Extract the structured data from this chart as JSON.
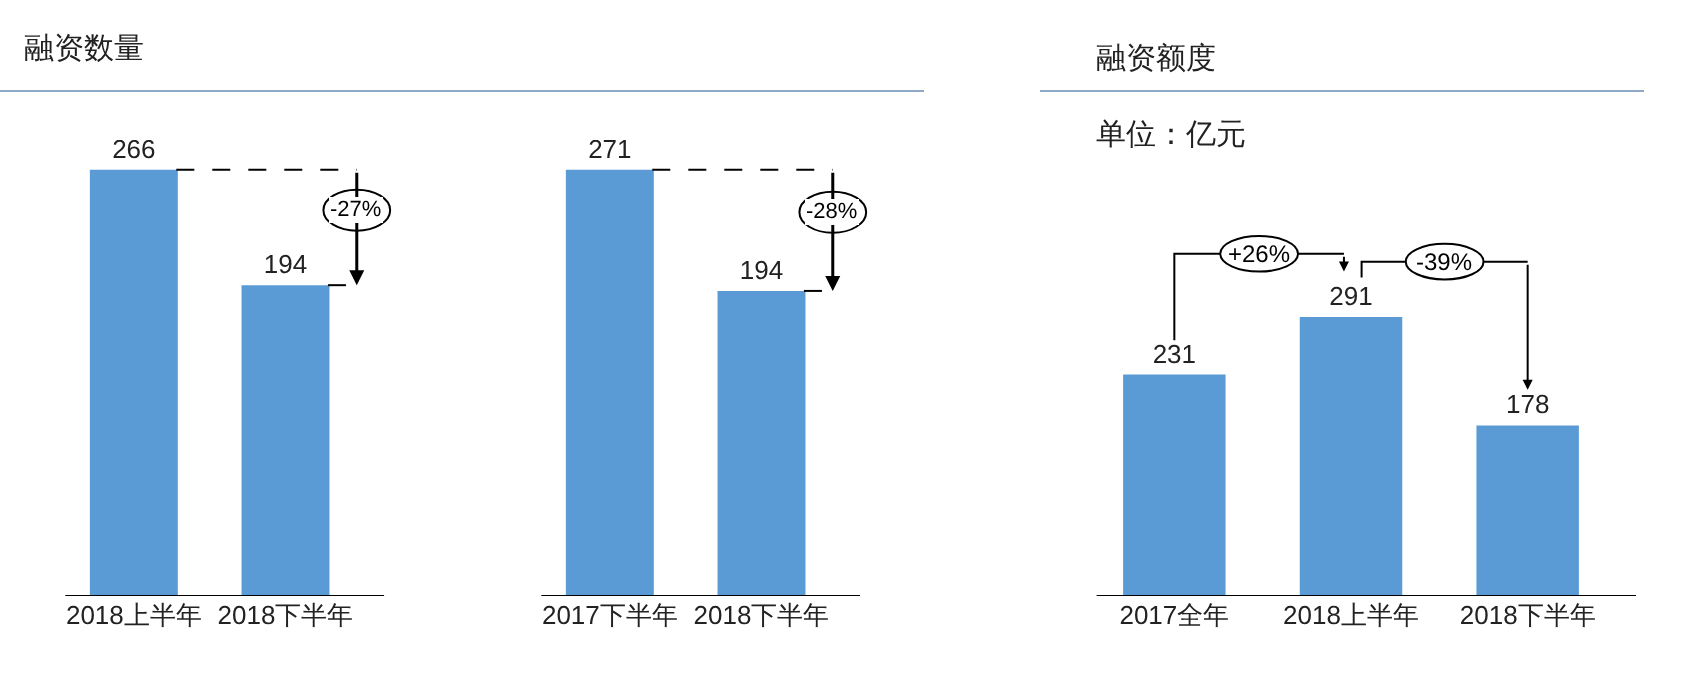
{
  "chart_data": [
    {
      "type": "bar",
      "title": "融资数量",
      "categories": [
        "2018上半年",
        "2018下半年"
      ],
      "values": [
        266,
        194
      ],
      "color": "#5b9bd5",
      "data_labels": true,
      "annotations": [
        "-27%"
      ]
    },
    {
      "type": "bar",
      "categories": [
        "2017下半年",
        "2018下半年"
      ],
      "values": [
        271,
        194
      ],
      "color": "#5b9bd5",
      "data_labels": true,
      "annotations": [
        "-28%"
      ]
    },
    {
      "type": "bar",
      "title": "融资额度",
      "subtitle": "单位：亿元",
      "categories": [
        "2017全年",
        "2018上半年",
        "2018下半年"
      ],
      "values": [
        231,
        291,
        178
      ],
      "color": "#5b9bd5",
      "data_labels": true,
      "annotations": [
        "+26%",
        "-39%"
      ]
    }
  ]
}
